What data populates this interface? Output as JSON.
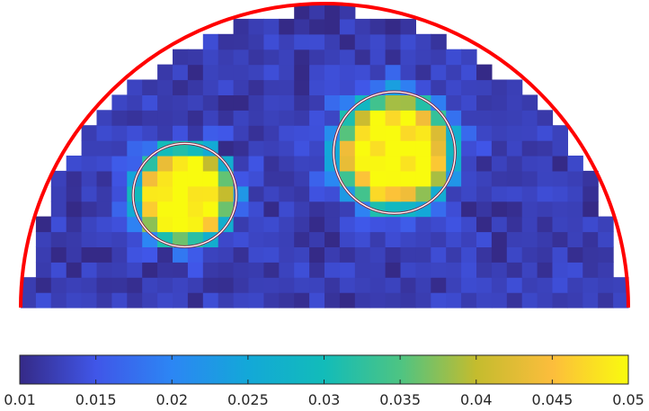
{
  "chart_data": {
    "type": "heatmap",
    "title": "",
    "xlabel": "",
    "ylabel": "",
    "colormap": "parula",
    "color_range": [
      0.01,
      0.05
    ],
    "grid_size": [
      40,
      20
    ],
    "background_value": 0.01,
    "noise_level": 0.002,
    "boundary": {
      "shape": "semicircle",
      "color": "#ff0000"
    },
    "inclusions": [
      {
        "name": "left-inclusion",
        "center_x": -0.46,
        "center_y": 0.37,
        "radius": 0.17,
        "peak_value": 0.05
      },
      {
        "name": "right-inclusion",
        "center_x": 0.23,
        "center_y": 0.51,
        "radius": 0.2,
        "peak_value": 0.05
      }
    ],
    "outline_circles": [
      {
        "center_x": -0.46,
        "center_y": 0.37,
        "radius": 0.17
      },
      {
        "center_x": 0.23,
        "center_y": 0.51,
        "radius": 0.2
      }
    ],
    "colorbar": {
      "orientation": "horizontal",
      "min": 0.01,
      "max": 0.05,
      "tick_values": [
        0.01,
        0.015,
        0.02,
        0.025,
        0.03,
        0.035,
        0.04,
        0.045,
        0.05
      ],
      "tick_labels": [
        "0.01",
        "0.015",
        "0.02",
        "0.025",
        "0.03",
        "0.035",
        "0.04",
        "0.045",
        "0.05"
      ]
    }
  }
}
